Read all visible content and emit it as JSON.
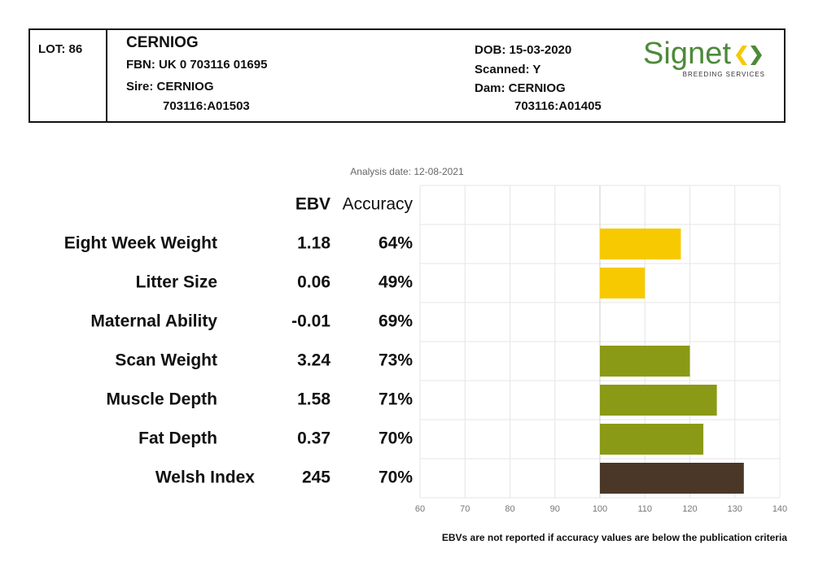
{
  "header": {
    "lot": "LOT: 86",
    "name": "CERNIOG",
    "fbn": "FBN: UK 0 703116 01695",
    "sire": "Sire: CERNIOG",
    "sire_id": "703116:A01503",
    "dob": "DOB: 15-03-2020",
    "scanned": "Scanned: Y",
    "dam": "Dam: CERNIOG",
    "dam_id": "703116:A01405",
    "logo": "Signet",
    "logo_sub": "BREEDING SERVICES"
  },
  "table": {
    "headers": [
      "EBV",
      "Accuracy"
    ],
    "rows": [
      [
        "1.18",
        "64%"
      ],
      [
        "0.06",
        "49%"
      ],
      [
        "-0.01",
        "69%"
      ],
      [
        "3.24",
        "73%"
      ],
      [
        "1.58",
        "71%"
      ],
      [
        "0.37",
        "70%"
      ],
      [
        "245",
        "70%"
      ]
    ]
  },
  "chart_data": {
    "type": "bar",
    "orientation": "horizontal",
    "subtitle": "Analysis date: 12-08-2021",
    "categories": [
      "Eight Week Weight",
      "Litter Size",
      "Maternal Ability",
      "Scan Weight",
      "Muscle Depth",
      "Fat Depth",
      "Welsh Index"
    ],
    "values": [
      118,
      110,
      null,
      120,
      126,
      123,
      132
    ],
    "colors": [
      "#f7c900",
      "#f7c900",
      "#f7c900",
      "#8b9a16",
      "#8b9a16",
      "#8b9a16",
      "#4a3727"
    ],
    "base": 100,
    "xlim": [
      60,
      140
    ],
    "xticks": [
      60,
      70,
      80,
      90,
      100,
      110,
      120,
      130,
      140
    ],
    "grid": true
  },
  "footnote": "EBVs are not reported if accuracy values are below the publication criteria"
}
